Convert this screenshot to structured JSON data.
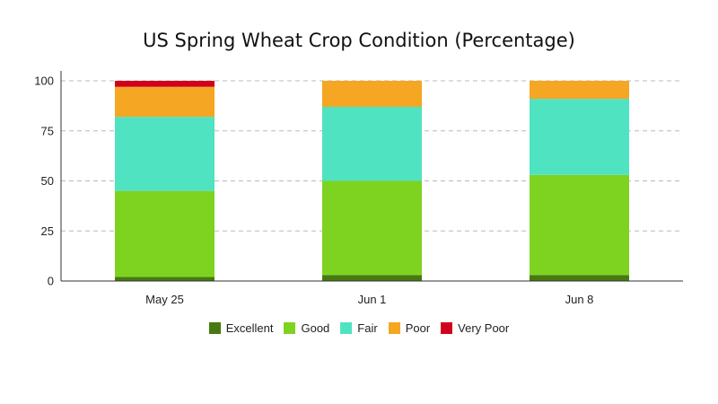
{
  "chart_data": {
    "type": "bar",
    "stacked": true,
    "title": "US Spring Wheat Crop Condition (Percentage)",
    "xlabel": "",
    "ylabel": "",
    "categories": [
      "May 25",
      "Jun 1",
      "Jun 8"
    ],
    "ylim": [
      0,
      100
    ],
    "yticks": [
      0,
      25,
      50,
      75,
      100
    ],
    "grid": "horizontal-dashed",
    "legend_position": "bottom",
    "series": [
      {
        "name": "Excellent",
        "color": "#467a11",
        "values": [
          2,
          3,
          3
        ]
      },
      {
        "name": "Good",
        "color": "#7ed321",
        "values": [
          43,
          47,
          50
        ]
      },
      {
        "name": "Fair",
        "color": "#50e3c2",
        "values": [
          37,
          37,
          38
        ]
      },
      {
        "name": "Poor",
        "color": "#f5a623",
        "values": [
          15,
          13,
          9
        ]
      },
      {
        "name": "Very Poor",
        "color": "#d0021b",
        "values": [
          3,
          0,
          0
        ]
      }
    ]
  }
}
